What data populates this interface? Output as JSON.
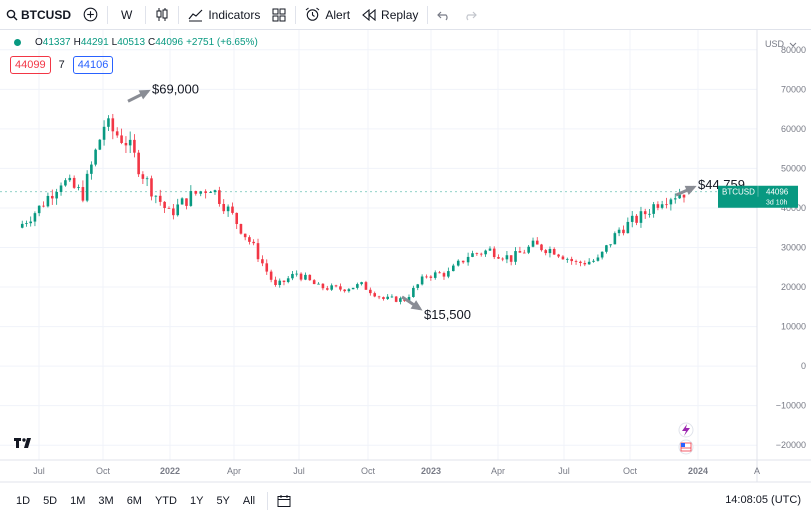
{
  "toolbar": {
    "symbol": "BTCUSD",
    "interval": "W",
    "indicators_label": "Indicators",
    "alert_label": "Alert",
    "replay_label": "Replay"
  },
  "legend": {
    "open_key": "O",
    "open": "41337",
    "high_key": "H",
    "high": "44291",
    "low_key": "L",
    "low": "40513",
    "close_key": "C",
    "close": "44096",
    "change": "+2751 (+6.65%)"
  },
  "order": {
    "sell": "44099",
    "spread": "7",
    "buy": "44106"
  },
  "annotations": {
    "peak": "$69,000",
    "bottom": "$15,500",
    "recent": "$44,759"
  },
  "price_axis": {
    "currency": "USD",
    "ticks": [
      "80000",
      "70000",
      "60000",
      "50000",
      "40000",
      "30000",
      "20000",
      "10000",
      "0",
      "−10000",
      "−20000"
    ],
    "current_symbol": "BTCUSD",
    "current_price": "44096",
    "countdown": "3d 10h"
  },
  "time_axis": {
    "ticks": [
      "Jul",
      "Oct",
      "2022",
      "Apr",
      "Jul",
      "Oct",
      "2023",
      "Apr",
      "Jul",
      "Oct",
      "2024",
      "A"
    ]
  },
  "bottom": {
    "ranges": [
      "1D",
      "5D",
      "1M",
      "3M",
      "6M",
      "YTD",
      "1Y",
      "5Y",
      "All"
    ],
    "clock": "14:08:05 (UTC)"
  },
  "colors": {
    "up": "#089981",
    "down": "#f23645",
    "accent": "#2962ff",
    "grid": "#f0f3fa"
  },
  "chart_data": {
    "type": "candlestick",
    "symbol": "BTCUSD",
    "interval": "W",
    "x": [
      "2021-06",
      "2021-07",
      "2021-08",
      "2021-09",
      "2021-10",
      "2021-11",
      "2021-12",
      "2022-01",
      "2022-02",
      "2022-03",
      "2022-04",
      "2022-05",
      "2022-06",
      "2022-07",
      "2022-08",
      "2022-09",
      "2022-10",
      "2022-11",
      "2022-12",
      "2023-01",
      "2023-02",
      "2023-03",
      "2023-04",
      "2023-05",
      "2023-06",
      "2023-07",
      "2023-08",
      "2023-09",
      "2023-10",
      "2023-11",
      "2023-12",
      "2024-01"
    ],
    "close": [
      35000,
      40000,
      47000,
      43500,
      61000,
      57000,
      46500,
      38500,
      43000,
      45500,
      38000,
      30000,
      20000,
      23500,
      20000,
      19500,
      20500,
      17000,
      16800,
      23000,
      23500,
      28000,
      29300,
      27200,
      30500,
      29300,
      26000,
      26800,
      34500,
      37800,
      42500,
      44096
    ],
    "ylim": [
      -25000,
      85000
    ],
    "annotations": [
      {
        "label": "$69,000",
        "x": "2021-11",
        "y": 69000
      },
      {
        "label": "$15,500",
        "x": "2022-11",
        "y": 15500
      },
      {
        "label": "$44,759",
        "x": "2024-01",
        "y": 44759
      }
    ]
  }
}
